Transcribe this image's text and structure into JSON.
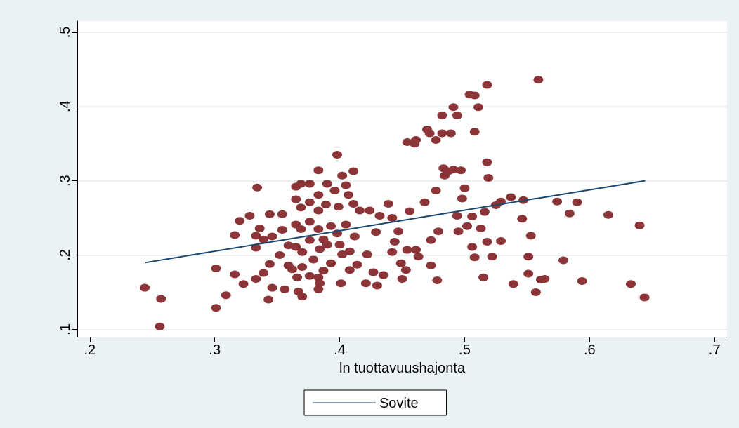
{
  "chart_data": {
    "type": "scatter",
    "xlabel": "ln tuottavuushajonta",
    "xlim": [
      0.19,
      0.71
    ],
    "ylim": [
      0.09,
      0.515
    ],
    "xticks": [
      {
        "value": 0.2,
        "label": ".2"
      },
      {
        "value": 0.3,
        "label": ".3"
      },
      {
        "value": 0.4,
        "label": ".4"
      },
      {
        "value": 0.5,
        "label": ".5"
      },
      {
        "value": 0.6,
        "label": ".6"
      },
      {
        "value": 0.7,
        "label": ".7"
      }
    ],
    "yticks": [
      {
        "value": 0.1,
        "label": ".1"
      },
      {
        "value": 0.2,
        "label": ".2"
      },
      {
        "value": 0.3,
        "label": ".3"
      },
      {
        "value": 0.4,
        "label": ".4"
      },
      {
        "value": 0.5,
        "label": ".5"
      }
    ],
    "grid": "y",
    "legend": "bottom",
    "marker": "circle",
    "series": [
      {
        "color": "#8b3538",
        "x": [
          0.244,
          0.257,
          0.256,
          0.301,
          0.301,
          0.309,
          0.316,
          0.323,
          0.316,
          0.32,
          0.328,
          0.334,
          0.333,
          0.333,
          0.336,
          0.339,
          0.333,
          0.339,
          0.343,
          0.344,
          0.346,
          0.344,
          0.346,
          0.354,
          0.354,
          0.356,
          0.352,
          0.359,
          0.359,
          0.362,
          0.365,
          0.365,
          0.365,
          0.365,
          0.366,
          0.369,
          0.369,
          0.369,
          0.37,
          0.37,
          0.367,
          0.37,
          0.376,
          0.376,
          0.376,
          0.376,
          0.376,
          0.379,
          0.383,
          0.383,
          0.384,
          0.383,
          0.383,
          0.383,
          0.383,
          0.384,
          0.387,
          0.387,
          0.39,
          0.389,
          0.393,
          0.39,
          0.393,
          0.398,
          0.396,
          0.402,
          0.399,
          0.398,
          0.4,
          0.402,
          0.401,
          0.405,
          0.407,
          0.405,
          0.408,
          0.408,
          0.411,
          0.411,
          0.412,
          0.414,
          0.416,
          0.421,
          0.422,
          0.424,
          0.427,
          0.429,
          0.43,
          0.432,
          0.435,
          0.439,
          0.442,
          0.442,
          0.444,
          0.447,
          0.449,
          0.45,
          0.453,
          0.454,
          0.456,
          0.454,
          0.46,
          0.461,
          0.461,
          0.463,
          0.468,
          0.47,
          0.472,
          0.473,
          0.473,
          0.477,
          0.477,
          0.478,
          0.479,
          0.482,
          0.482,
          0.483,
          0.484,
          0.487,
          0.489,
          0.491,
          0.491,
          0.494,
          0.494,
          0.495,
          0.497,
          0.498,
          0.5,
          0.502,
          0.504,
          0.508,
          0.506,
          0.506,
          0.508,
          0.508,
          0.511,
          0.513,
          0.515,
          0.516,
          0.518,
          0.518,
          0.519,
          0.518,
          0.522,
          0.525,
          0.529,
          0.529,
          0.537,
          0.539,
          0.547,
          0.546,
          0.551,
          0.551,
          0.553,
          0.557,
          0.559,
          0.561,
          0.564,
          0.574,
          0.579,
          0.584,
          0.59,
          0.594,
          0.615,
          0.633,
          0.64,
          0.644
        ],
        "values": [
          0.156,
          0.141,
          0.104,
          0.182,
          0.129,
          0.146,
          0.174,
          0.161,
          0.227,
          0.246,
          0.253,
          0.291,
          0.226,
          0.21,
          0.236,
          0.221,
          0.168,
          0.176,
          0.14,
          0.255,
          0.225,
          0.188,
          0.156,
          0.255,
          0.234,
          0.154,
          0.2,
          0.213,
          0.186,
          0.181,
          0.292,
          0.275,
          0.241,
          0.211,
          0.17,
          0.296,
          0.264,
          0.235,
          0.204,
          0.184,
          0.151,
          0.144,
          0.296,
          0.271,
          0.245,
          0.22,
          0.172,
          0.194,
          0.17,
          0.154,
          0.162,
          0.314,
          0.281,
          0.26,
          0.235,
          0.208,
          0.221,
          0.179,
          0.296,
          0.268,
          0.239,
          0.214,
          0.189,
          0.335,
          0.287,
          0.307,
          0.265,
          0.229,
          0.214,
          0.201,
          0.162,
          0.294,
          0.281,
          0.241,
          0.205,
          0.18,
          0.313,
          0.269,
          0.225,
          0.187,
          0.26,
          0.162,
          0.201,
          0.26,
          0.177,
          0.231,
          0.159,
          0.253,
          0.173,
          0.269,
          0.25,
          0.204,
          0.218,
          0.232,
          0.189,
          0.168,
          0.18,
          0.207,
          0.259,
          0.352,
          0.35,
          0.355,
          0.207,
          0.198,
          0.271,
          0.369,
          0.364,
          0.186,
          0.22,
          0.355,
          0.287,
          0.166,
          0.232,
          0.388,
          0.364,
          0.317,
          0.307,
          0.313,
          0.364,
          0.399,
          0.315,
          0.253,
          0.388,
          0.232,
          0.314,
          0.276,
          0.29,
          0.239,
          0.416,
          0.415,
          0.252,
          0.211,
          0.366,
          0.197,
          0.399,
          0.236,
          0.17,
          0.258,
          0.429,
          0.325,
          0.304,
          0.218,
          0.198,
          0.267,
          0.219,
          0.272,
          0.278,
          0.161,
          0.274,
          0.249,
          0.198,
          0.175,
          0.226,
          0.15,
          0.436,
          0.167,
          0.168,
          0.272,
          0.193,
          0.256,
          0.271,
          0.165,
          0.254,
          0.161,
          0.24,
          0.143
        ]
      },
      {
        "type": "line",
        "name": "Sovite",
        "color": "#1a476f",
        "marker": "none",
        "x": [
          0.245,
          0.644
        ],
        "values": [
          0.19,
          0.3
        ]
      }
    ]
  }
}
